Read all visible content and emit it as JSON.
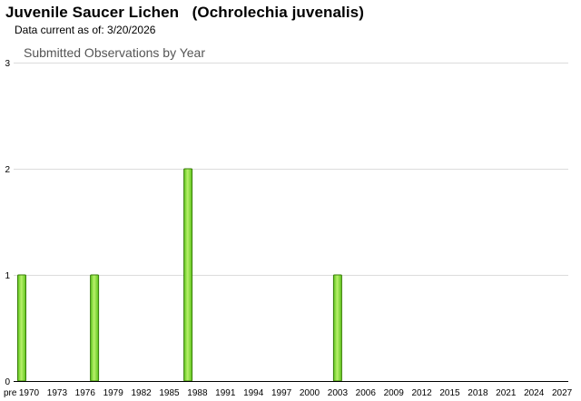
{
  "header": {
    "title": "Juvenile Saucer Lichen   (Ochrolechia juvenalis)",
    "data_current": "Data current as of: 3/20/2026"
  },
  "colors": {
    "bar_light": "#b8f06a",
    "bar_dark": "#5cc41a",
    "bar_stroke": "#3a7d0a",
    "grid": "#dcdcdc"
  },
  "chart_data": {
    "type": "bar",
    "title": "Submitted Observations by Year",
    "xlabel": "",
    "ylabel": "",
    "ylim": [
      0,
      3
    ],
    "yticks": [
      0,
      1,
      2,
      3
    ],
    "grid": true,
    "x_tick_labels": [
      "pre",
      "1970",
      "1973",
      "1976",
      "1979",
      "1982",
      "1985",
      "1988",
      "1991",
      "1994",
      "1997",
      "2000",
      "2003",
      "2006",
      "2009",
      "2012",
      "2015",
      "2018",
      "2021",
      "2024",
      "2027"
    ],
    "categories": [
      "pre 1970",
      "1977",
      "1987",
      "2003"
    ],
    "values": [
      1,
      1,
      2,
      1
    ]
  }
}
